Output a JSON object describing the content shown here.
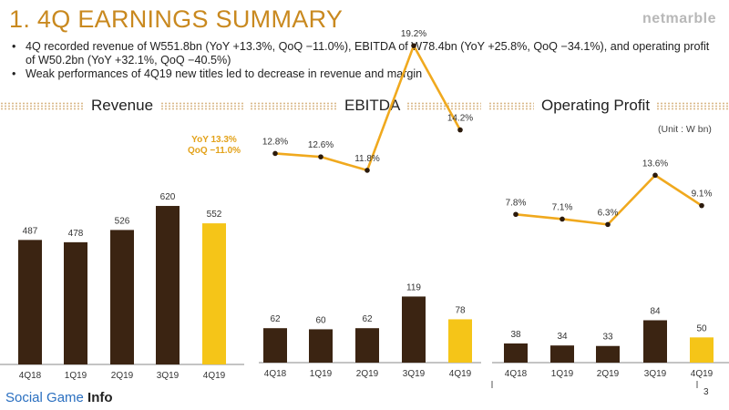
{
  "header": {
    "title": "1. 4Q EARNINGS SUMMARY",
    "brand": "netmarble"
  },
  "bullets": [
    "4Q recorded revenue of W551.8bn (YoY +13.3%, QoQ −11.0%), EBITDA of W78.4bn (YoY +25.8%, QoQ −34.1%), and operating profit of W50.2bn (YoY +32.1%, QoQ −40.5%)",
    "Weak performances of 4Q19 new titles led to decrease in revenue and margin"
  ],
  "unit_label": "(Unit : W bn)",
  "footer": {
    "logo_a": "Social Game ",
    "logo_b": "Info",
    "page": "3"
  },
  "colors": {
    "dark_bar": "#3b2412",
    "highlight_bar": "#f5c518",
    "line": "#f0a91e",
    "accent_text": "#e3a21a",
    "title": "#c9891f"
  },
  "chart_data": [
    {
      "type": "bar",
      "title": "Revenue",
      "categories": [
        "4Q18",
        "1Q19",
        "2Q19",
        "3Q19",
        "4Q19"
      ],
      "values": [
        487,
        478,
        526,
        620,
        552
      ],
      "highlight_index": 4,
      "annotation": [
        "YoY 13.3%",
        "QoQ −11.0%"
      ]
    },
    {
      "type": "bar",
      "title": "EBITDA",
      "categories": [
        "4Q18",
        "1Q19",
        "2Q19",
        "3Q19",
        "4Q19"
      ],
      "values": [
        62,
        60,
        62,
        119,
        78
      ],
      "highlight_index": 4,
      "margin": {
        "values": [
          12.8,
          12.6,
          11.8,
          19.2,
          14.2
        ],
        "labels": [
          "12.8%",
          "12.6%",
          "11.8%",
          "19.2%",
          "14.2%"
        ]
      }
    },
    {
      "type": "bar",
      "title": "Operating Profit",
      "categories": [
        "4Q18",
        "1Q19",
        "2Q19",
        "3Q19",
        "4Q19"
      ],
      "values": [
        38,
        34,
        33,
        84,
        50
      ],
      "highlight_index": 4,
      "margin": {
        "values": [
          7.8,
          7.1,
          6.3,
          13.6,
          9.1
        ],
        "labels": [
          "7.8%",
          "7.1%",
          "6.3%",
          "13.6%",
          "9.1%"
        ]
      }
    }
  ]
}
